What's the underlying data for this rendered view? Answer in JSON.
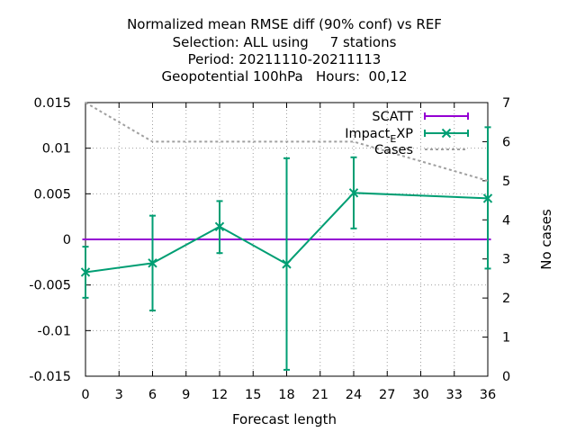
{
  "chart_data": {
    "type": "line",
    "title": [
      "Normalized mean RMSE diff (90% conf) vs REF",
      "Selection: ALL using     7 stations",
      "Period: 20211110-20211113",
      "Geopotential 100hPa   Hours:  00,12"
    ],
    "xlabel": "Forecast length",
    "ylabel": "",
    "y2label": "No cases",
    "xlim": [
      0,
      36
    ],
    "ylim": [
      -0.015,
      0.015
    ],
    "y2lim": [
      0,
      7
    ],
    "xticks": [
      0,
      3,
      6,
      9,
      12,
      15,
      18,
      21,
      24,
      27,
      30,
      33,
      36
    ],
    "yticks": [
      -0.015,
      -0.01,
      -0.005,
      0,
      0.005,
      0.01,
      0.015
    ],
    "ytick_labels": [
      "-0.015",
      "-0.01",
      "-0.005",
      "0",
      "0.005",
      "0.01",
      "0.015"
    ],
    "y2ticks": [
      0,
      1,
      2,
      3,
      4,
      5,
      6,
      7
    ],
    "grid": true,
    "legend_position": "top-right",
    "series": [
      {
        "name": "SCATT",
        "color": "#9400d3",
        "axis": "y1",
        "x": [
          0,
          6,
          12,
          18,
          24,
          36
        ],
        "y": [
          0,
          0,
          0,
          0,
          0,
          0
        ],
        "err_low": [
          0,
          0,
          0,
          0,
          0,
          0
        ],
        "err_high": [
          0,
          0,
          0,
          0,
          0,
          0
        ]
      },
      {
        "name": "Impact_EXP",
        "legend_parts": [
          "Impact",
          "E",
          "XP"
        ],
        "color": "#009e73",
        "axis": "y1",
        "x": [
          0,
          6,
          12,
          18,
          24,
          36
        ],
        "y": [
          -0.0036,
          -0.0026,
          0.0014,
          -0.0027,
          0.0051,
          0.0045
        ],
        "err_low": [
          -0.0064,
          -0.0078,
          -0.0015,
          -0.0143,
          0.0012,
          -0.0032
        ],
        "err_high": [
          -0.0008,
          0.0026,
          0.0042,
          0.0089,
          0.009,
          0.0123
        ]
      },
      {
        "name": "Cases",
        "color": "#a0a0a0",
        "axis": "y2",
        "x": [
          0,
          6,
          12,
          18,
          24,
          36
        ],
        "y": [
          7,
          6,
          6,
          6,
          6,
          5
        ]
      }
    ]
  }
}
